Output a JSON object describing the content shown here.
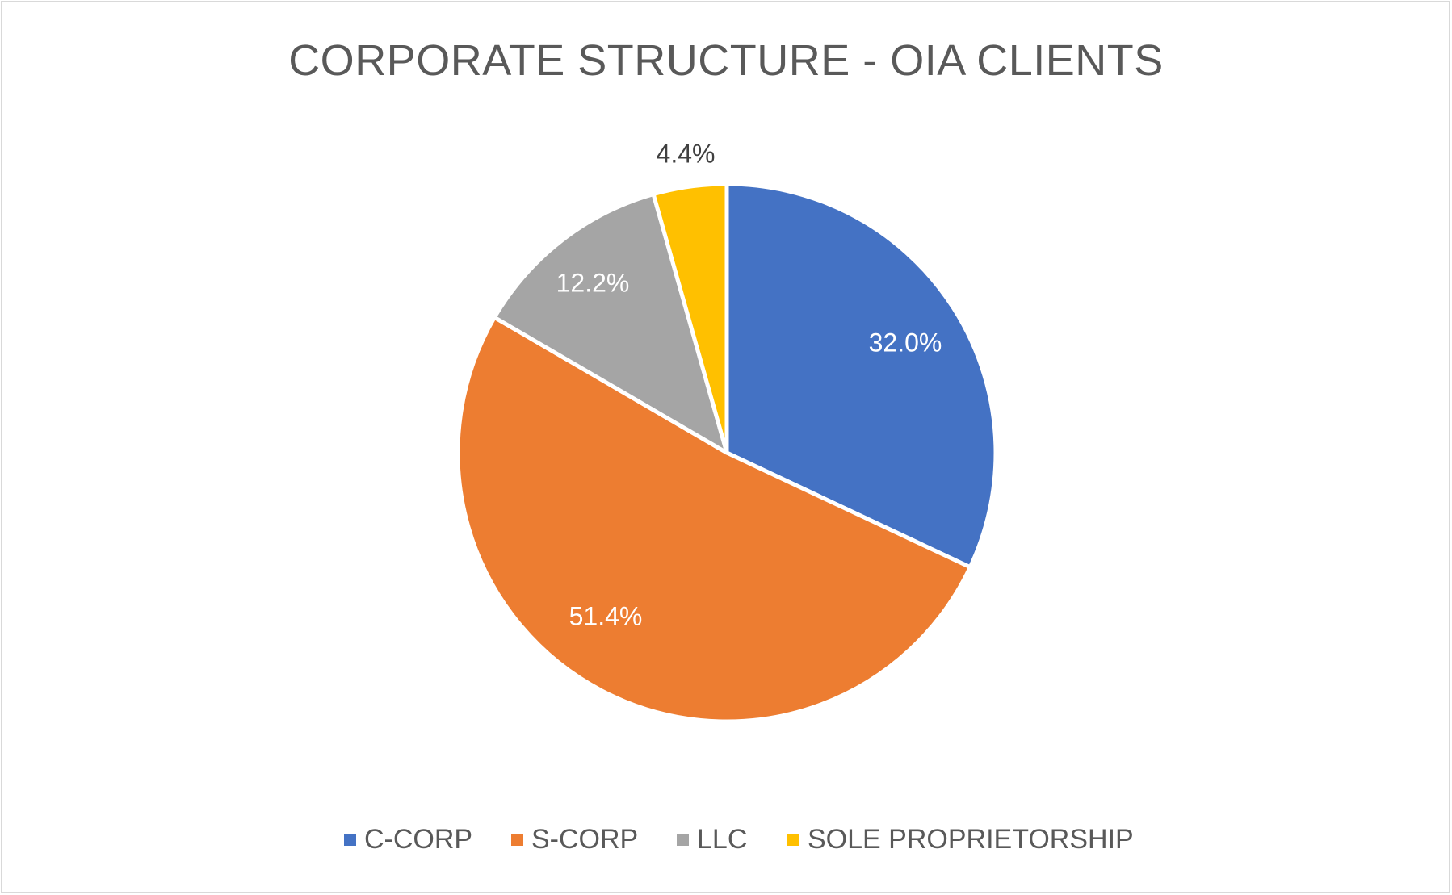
{
  "chart_data": {
    "type": "pie",
    "title": "CORPORATE STRUCTURE - OIA CLIENTS",
    "categories": [
      "C-CORP",
      "S-CORP",
      "LLC",
      "SOLE PROPRIETORSHIP"
    ],
    "values": [
      32.0,
      51.4,
      12.2,
      4.4
    ],
    "data_labels": [
      "32.0%",
      "51.4%",
      "12.2%",
      "4.4%"
    ],
    "colors": [
      "#4472C4",
      "#ED7D31",
      "#A5A5A5",
      "#FFC000"
    ],
    "label_colors": [
      "#ffffff",
      "#ffffff",
      "#ffffff",
      "#404040"
    ],
    "legend_position": "bottom",
    "start_angle": "12 o'clock, clockwise"
  }
}
